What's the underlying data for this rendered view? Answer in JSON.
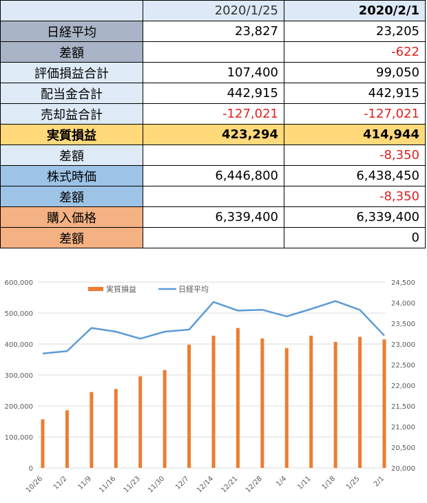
{
  "table": {
    "headers": [
      "",
      "2020/1/25",
      "2020/2/1"
    ],
    "rows": [
      {
        "label": "日経平均",
        "v1": "23,827",
        "v2": "23,205"
      },
      {
        "label": "差額",
        "v1": "",
        "v2": "-622"
      },
      {
        "label": "評価損益合計",
        "v1": "107,400",
        "v2": "99,050"
      },
      {
        "label": "配当金合計",
        "v1": "442,915",
        "v2": "442,915"
      },
      {
        "label": "売却益合計",
        "v1": "-127,021",
        "v2": "-127,021"
      },
      {
        "label": "実質損益",
        "v1": "423,294",
        "v2": "414,944"
      },
      {
        "label": "差額",
        "v1": "",
        "v2": "-8,350"
      },
      {
        "label": "株式時価",
        "v1": "6,446,800",
        "v2": "6,438,450"
      },
      {
        "label": "差額",
        "v1": "",
        "v2": "-8,350"
      },
      {
        "label": "購入価格",
        "v1": "6,339,400",
        "v2": "6,339,400"
      },
      {
        "label": "差額",
        "v1": "",
        "v2": "0"
      }
    ]
  },
  "chart_data": {
    "type": "bar+line",
    "categories": [
      "10/26",
      "11/2",
      "11/9",
      "11/16",
      "11/23",
      "11/30",
      "12/7",
      "12/14",
      "12/21",
      "12/28",
      "1/4",
      "1/11",
      "1/18",
      "1/25",
      "2/1"
    ],
    "series": [
      {
        "name": "実質損益",
        "type": "bar",
        "axis": "left",
        "color": "#ed7d31",
        "values": [
          157000,
          186000,
          245000,
          255000,
          296000,
          316000,
          398000,
          427000,
          452000,
          418000,
          387000,
          427000,
          407000,
          423294,
          414944
        ]
      },
      {
        "name": "日経平均",
        "type": "line",
        "axis": "right",
        "color": "#5b9bd5",
        "values": [
          22770,
          22830,
          23390,
          23300,
          23130,
          23300,
          23350,
          24020,
          23810,
          23830,
          23670,
          23850,
          24040,
          23827,
          23205
        ]
      }
    ],
    "left_axis": {
      "min": 0,
      "max": 600000,
      "ticks": [
        "0",
        "100,000",
        "200,000",
        "300,000",
        "400,000",
        "500,000",
        "600,000"
      ]
    },
    "right_axis": {
      "min": 20000,
      "max": 24500,
      "ticks": [
        "20,000",
        "20,500",
        "21,000",
        "21,500",
        "22,000",
        "22,500",
        "23,000",
        "23,500",
        "24,000",
        "24,500"
      ]
    },
    "legend_position": "top-left",
    "grid": true
  }
}
